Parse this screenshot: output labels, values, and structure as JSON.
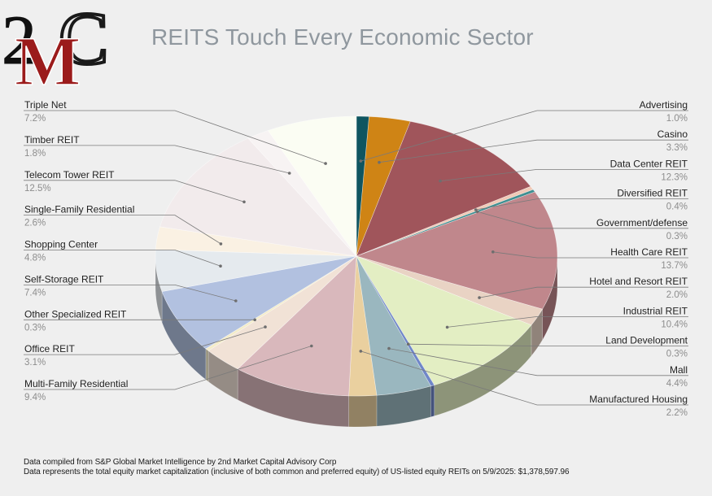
{
  "title": "REITS Touch Every Economic Sector",
  "logo_text": "2MC",
  "footnotes": [
    "Data compiled from S&P Global Market Intelligence by 2nd Market Capital Advisory Corp",
    "Data represents the total equity market capitalization (inclusive of both common and preferred equity) of US-listed equity REITs on 5/9/2025: $1,378,597.96"
  ],
  "chart_data": {
    "type": "pie",
    "style": "3d",
    "legend": "none",
    "slices": [
      {
        "label": "Advertising",
        "value": 1.0,
        "display": "1.0%",
        "color": "#0f5560"
      },
      {
        "label": "Casino",
        "value": 3.3,
        "display": "3.3%",
        "color": "#cf8415"
      },
      {
        "label": "Data Center REIT",
        "value": 12.3,
        "display": "12.3%",
        "color": "#a0555b"
      },
      {
        "label": "Diversified REIT",
        "value": 0.4,
        "display": "0.4%",
        "color": "#f0c9b6"
      },
      {
        "label": "Government/defense",
        "value": 0.3,
        "display": "0.3%",
        "color": "#3f8f91"
      },
      {
        "label": "Health Care REIT",
        "value": 13.7,
        "display": "13.7%",
        "color": "#c0878c"
      },
      {
        "label": "Hotel and Resort REIT",
        "value": 2.0,
        "display": "2.0%",
        "color": "#e9d3c4"
      },
      {
        "label": "Industrial REIT",
        "value": 10.4,
        "display": "10.4%",
        "color": "#e3eec3"
      },
      {
        "label": "Land Development",
        "value": 0.3,
        "display": "0.3%",
        "color": "#6f86c8"
      },
      {
        "label": "Mall",
        "value": 4.4,
        "display": "4.4%",
        "color": "#9ab7bf"
      },
      {
        "label": "Manufactured Housing",
        "value": 2.2,
        "display": "2.2%",
        "color": "#ead09f"
      },
      {
        "label": "Multi-Family Residential",
        "value": 9.4,
        "display": "9.4%",
        "color": "#d9b8bc"
      },
      {
        "label": "Office REIT",
        "value": 3.1,
        "display": "3.1%",
        "color": "#f1e2d6"
      },
      {
        "label": "Other Specialized REIT",
        "value": 0.3,
        "display": "0.3%",
        "color": "#f4ecc9"
      },
      {
        "label": "Self-Storage REIT",
        "value": 7.4,
        "display": "7.4%",
        "color": "#b2c1e0"
      },
      {
        "label": "Shopping Center",
        "value": 4.8,
        "display": "4.8%",
        "color": "#e5eaee"
      },
      {
        "label": "Single-Family Residential",
        "value": 2.6,
        "display": "2.6%",
        "color": "#faf1e3"
      },
      {
        "label": "Telecom Tower REIT",
        "value": 12.5,
        "display": "12.5%",
        "color": "#f2ebec"
      },
      {
        "label": "Timber REIT",
        "value": 1.8,
        "display": "1.8%",
        "color": "#f7f3f3"
      },
      {
        "label": "Triple Net",
        "value": 7.2,
        "display": "7.2%",
        "color": "#fbfdf3"
      }
    ]
  }
}
